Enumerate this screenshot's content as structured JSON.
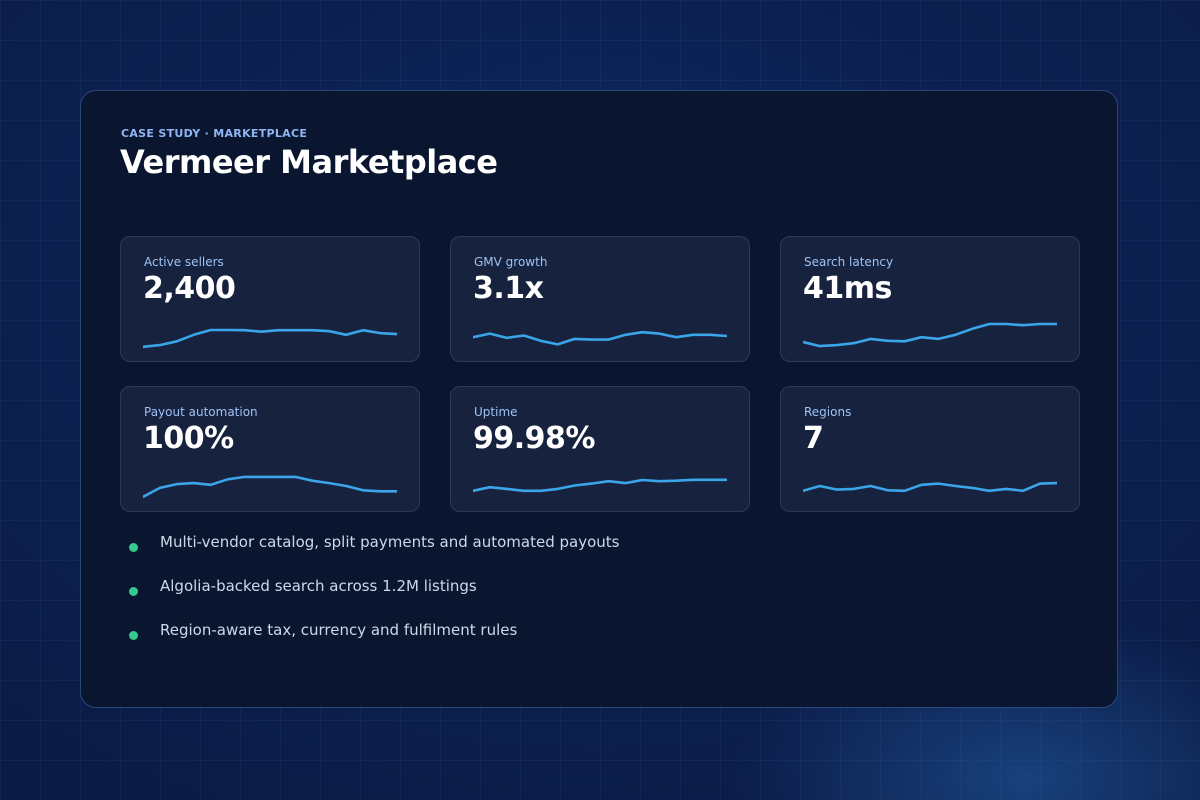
{
  "header": {
    "eyebrow": "CASE STUDY · MARKETPLACE",
    "title": "Vermeer Marketplace"
  },
  "metrics": [
    {
      "label": "Active sellers",
      "value": "2,400",
      "trend": [
        0.05,
        0.12,
        0.28,
        0.55,
        0.75,
        0.75,
        0.74,
        0.68,
        0.74,
        0.74,
        0.74,
        0.7,
        0.55,
        0.74,
        0.62,
        0.58
      ]
    },
    {
      "label": "GMV growth",
      "value": "3.1x",
      "trend": [
        0.45,
        0.6,
        0.42,
        0.52,
        0.3,
        0.15,
        0.38,
        0.35,
        0.35,
        0.55,
        0.66,
        0.6,
        0.45,
        0.55,
        0.55,
        0.5
      ]
    },
    {
      "label": "Search latency",
      "value": "41ms",
      "trend": [
        0.25,
        0.08,
        0.12,
        0.2,
        0.38,
        0.3,
        0.28,
        0.45,
        0.38,
        0.55,
        0.8,
        1.0,
        1.0,
        0.95,
        1.0,
        1.0
      ]
    },
    {
      "label": "Payout automation",
      "value": "100%",
      "trend": [
        0.05,
        0.42,
        0.58,
        0.62,
        0.55,
        0.78,
        0.88,
        0.88,
        0.88,
        0.88,
        0.72,
        0.62,
        0.5,
        0.32,
        0.28,
        0.28
      ]
    },
    {
      "label": "Uptime",
      "value": "99.98%",
      "trend": [
        0.3,
        0.45,
        0.38,
        0.3,
        0.3,
        0.38,
        0.52,
        0.6,
        0.7,
        0.62,
        0.75,
        0.7,
        0.72,
        0.76,
        0.76,
        0.76
      ]
    },
    {
      "label": "Regions",
      "value": "7",
      "trend": [
        0.3,
        0.5,
        0.35,
        0.38,
        0.5,
        0.32,
        0.3,
        0.55,
        0.6,
        0.5,
        0.42,
        0.3,
        0.38,
        0.3,
        0.6,
        0.62
      ]
    }
  ],
  "bullets": [
    "Multi-vendor catalog, split payments and automated payouts",
    "Algolia-backed search across 1.2M listings",
    "Region-aware tax, currency and fulfilment rules"
  ],
  "colors": {
    "accent": "#3aa5e8",
    "bullet": "#34c98e",
    "card_bg": "#0a1530",
    "metric_bg": "#17233e"
  }
}
